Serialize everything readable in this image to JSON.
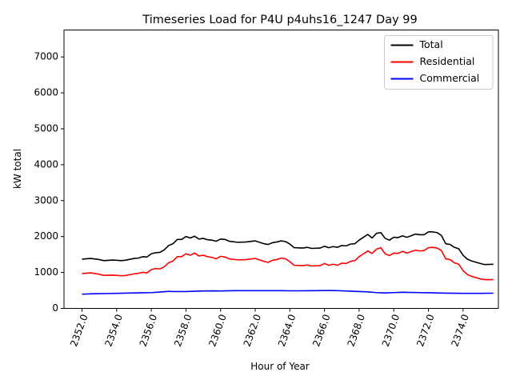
{
  "chart_data": {
    "type": "line",
    "title": "Timeseries Load for P4U p4uhs16_1247  Day 99",
    "xlabel": "Hour of Year",
    "ylabel": "kW total",
    "xlim": [
      2350.96,
      2376.04
    ],
    "ylim": [
      0,
      7750
    ],
    "xticks": [
      2352,
      2354,
      2356,
      2358,
      2360,
      2362,
      2364,
      2366,
      2368,
      2370,
      2372,
      2374
    ],
    "xtick_labels": [
      "2352.0",
      "2354.0",
      "2356.0",
      "2358.0",
      "2360.0",
      "2362.0",
      "2364.0",
      "2366.0",
      "2368.0",
      "2370.0",
      "2372.0",
      "2374.0"
    ],
    "yticks": [
      0,
      1000,
      2000,
      3000,
      4000,
      5000,
      6000,
      7000
    ],
    "ytick_labels": [
      "0",
      "1000",
      "2000",
      "3000",
      "4000",
      "5000",
      "6000",
      "7000"
    ],
    "grid": false,
    "legend_position": "top-right",
    "series": [
      {
        "name": "Total",
        "color": "#000000",
        "points": [
          [
            2352.0,
            1370
          ],
          [
            2352.5,
            1390
          ],
          [
            2353.0,
            1360
          ],
          [
            2353.25,
            1330
          ],
          [
            2353.75,
            1345
          ],
          [
            2354.0,
            1340
          ],
          [
            2354.25,
            1330
          ],
          [
            2354.5,
            1340
          ],
          [
            2355.0,
            1390
          ],
          [
            2355.25,
            1400
          ],
          [
            2355.5,
            1440
          ],
          [
            2355.75,
            1430
          ],
          [
            2356.0,
            1520
          ],
          [
            2356.25,
            1550
          ],
          [
            2356.5,
            1560
          ],
          [
            2356.75,
            1630
          ],
          [
            2357.0,
            1750
          ],
          [
            2357.25,
            1800
          ],
          [
            2357.5,
            1920
          ],
          [
            2357.75,
            1920
          ],
          [
            2358.0,
            2000
          ],
          [
            2358.25,
            1960
          ],
          [
            2358.5,
            2010
          ],
          [
            2358.75,
            1930
          ],
          [
            2359.0,
            1950
          ],
          [
            2359.25,
            1910
          ],
          [
            2359.5,
            1900
          ],
          [
            2359.75,
            1870
          ],
          [
            2360.0,
            1930
          ],
          [
            2360.25,
            1920
          ],
          [
            2360.5,
            1870
          ],
          [
            2361.0,
            1840
          ],
          [
            2361.5,
            1850
          ],
          [
            2362.0,
            1880
          ],
          [
            2362.25,
            1840
          ],
          [
            2362.5,
            1800
          ],
          [
            2362.75,
            1780
          ],
          [
            2363.0,
            1830
          ],
          [
            2363.25,
            1850
          ],
          [
            2363.5,
            1880
          ],
          [
            2363.75,
            1860
          ],
          [
            2364.0,
            1790
          ],
          [
            2364.25,
            1690
          ],
          [
            2364.75,
            1680
          ],
          [
            2365.0,
            1700
          ],
          [
            2365.25,
            1670
          ],
          [
            2365.75,
            1680
          ],
          [
            2366.0,
            1730
          ],
          [
            2366.25,
            1690
          ],
          [
            2366.5,
            1720
          ],
          [
            2366.75,
            1700
          ],
          [
            2367.0,
            1750
          ],
          [
            2367.25,
            1740
          ],
          [
            2367.5,
            1790
          ],
          [
            2367.75,
            1800
          ],
          [
            2368.0,
            1900
          ],
          [
            2368.25,
            1980
          ],
          [
            2368.5,
            2060
          ],
          [
            2368.75,
            1960
          ],
          [
            2369.0,
            2090
          ],
          [
            2369.25,
            2110
          ],
          [
            2369.5,
            1950
          ],
          [
            2369.75,
            1900
          ],
          [
            2370.0,
            1980
          ],
          [
            2370.25,
            1970
          ],
          [
            2370.5,
            2020
          ],
          [
            2370.75,
            1980
          ],
          [
            2371.0,
            2020
          ],
          [
            2371.25,
            2070
          ],
          [
            2371.5,
            2050
          ],
          [
            2371.75,
            2050
          ],
          [
            2372.0,
            2130
          ],
          [
            2372.25,
            2130
          ],
          [
            2372.5,
            2110
          ],
          [
            2372.75,
            2030
          ],
          [
            2373.0,
            1800
          ],
          [
            2373.25,
            1780
          ],
          [
            2373.5,
            1700
          ],
          [
            2373.75,
            1660
          ],
          [
            2374.0,
            1480
          ],
          [
            2374.25,
            1370
          ],
          [
            2374.5,
            1320
          ],
          [
            2375.0,
            1250
          ],
          [
            2375.25,
            1220
          ],
          [
            2375.75,
            1230
          ]
        ]
      },
      {
        "name": "Residential",
        "color": "#ff0000",
        "points": [
          [
            2352.0,
            970
          ],
          [
            2352.5,
            990
          ],
          [
            2353.0,
            950
          ],
          [
            2353.25,
            920
          ],
          [
            2353.75,
            925
          ],
          [
            2354.0,
            920
          ],
          [
            2354.25,
            910
          ],
          [
            2354.5,
            915
          ],
          [
            2355.0,
            960
          ],
          [
            2355.25,
            975
          ],
          [
            2355.5,
            1005
          ],
          [
            2355.75,
            990
          ],
          [
            2356.0,
            1080
          ],
          [
            2356.25,
            1110
          ],
          [
            2356.5,
            1100
          ],
          [
            2356.75,
            1160
          ],
          [
            2357.0,
            1270
          ],
          [
            2357.25,
            1320
          ],
          [
            2357.5,
            1440
          ],
          [
            2357.75,
            1440
          ],
          [
            2358.0,
            1520
          ],
          [
            2358.25,
            1480
          ],
          [
            2358.5,
            1540
          ],
          [
            2358.75,
            1460
          ],
          [
            2359.0,
            1480
          ],
          [
            2359.25,
            1440
          ],
          [
            2359.5,
            1420
          ],
          [
            2359.75,
            1380
          ],
          [
            2360.0,
            1450
          ],
          [
            2360.25,
            1430
          ],
          [
            2360.5,
            1380
          ],
          [
            2361.0,
            1350
          ],
          [
            2361.5,
            1360
          ],
          [
            2362.0,
            1390
          ],
          [
            2362.25,
            1350
          ],
          [
            2362.5,
            1310
          ],
          [
            2362.75,
            1280
          ],
          [
            2363.0,
            1340
          ],
          [
            2363.25,
            1360
          ],
          [
            2363.5,
            1400
          ],
          [
            2363.75,
            1380
          ],
          [
            2364.0,
            1300
          ],
          [
            2364.25,
            1200
          ],
          [
            2364.75,
            1190
          ],
          [
            2365.0,
            1210
          ],
          [
            2365.25,
            1180
          ],
          [
            2365.75,
            1190
          ],
          [
            2366.0,
            1250
          ],
          [
            2366.25,
            1200
          ],
          [
            2366.5,
            1230
          ],
          [
            2366.75,
            1200
          ],
          [
            2367.0,
            1260
          ],
          [
            2367.25,
            1250
          ],
          [
            2367.5,
            1310
          ],
          [
            2367.75,
            1330
          ],
          [
            2368.0,
            1440
          ],
          [
            2368.25,
            1520
          ],
          [
            2368.5,
            1600
          ],
          [
            2368.75,
            1530
          ],
          [
            2369.0,
            1650
          ],
          [
            2369.25,
            1690
          ],
          [
            2369.5,
            1520
          ],
          [
            2369.75,
            1470
          ],
          [
            2370.0,
            1540
          ],
          [
            2370.25,
            1530
          ],
          [
            2370.5,
            1590
          ],
          [
            2370.75,
            1540
          ],
          [
            2371.0,
            1580
          ],
          [
            2371.25,
            1620
          ],
          [
            2371.5,
            1600
          ],
          [
            2371.75,
            1610
          ],
          [
            2372.0,
            1690
          ],
          [
            2372.25,
            1700
          ],
          [
            2372.5,
            1680
          ],
          [
            2372.75,
            1610
          ],
          [
            2373.0,
            1380
          ],
          [
            2373.25,
            1360
          ],
          [
            2373.5,
            1270
          ],
          [
            2373.75,
            1230
          ],
          [
            2374.0,
            1050
          ],
          [
            2374.25,
            940
          ],
          [
            2374.5,
            890
          ],
          [
            2375.0,
            820
          ],
          [
            2375.25,
            800
          ],
          [
            2375.75,
            800
          ]
        ]
      },
      {
        "name": "Commercial",
        "color": "#0000ff",
        "points": [
          [
            2352.0,
            395
          ],
          [
            2352.5,
            405
          ],
          [
            2353.0,
            410
          ],
          [
            2353.5,
            415
          ],
          [
            2354.0,
            420
          ],
          [
            2354.5,
            425
          ],
          [
            2355.0,
            430
          ],
          [
            2355.5,
            435
          ],
          [
            2356.0,
            440
          ],
          [
            2356.5,
            455
          ],
          [
            2357.0,
            475
          ],
          [
            2357.25,
            470
          ],
          [
            2357.75,
            470
          ],
          [
            2358.0,
            470
          ],
          [
            2358.5,
            478
          ],
          [
            2359.0,
            485
          ],
          [
            2359.5,
            488
          ],
          [
            2360.0,
            485
          ],
          [
            2360.5,
            492
          ],
          [
            2361.0,
            495
          ],
          [
            2361.5,
            495
          ],
          [
            2362.0,
            495
          ],
          [
            2362.5,
            495
          ],
          [
            2363.0,
            495
          ],
          [
            2363.5,
            493
          ],
          [
            2364.0,
            490
          ],
          [
            2364.5,
            490
          ],
          [
            2365.0,
            492
          ],
          [
            2365.5,
            495
          ],
          [
            2366.0,
            498
          ],
          [
            2366.5,
            498
          ],
          [
            2367.0,
            490
          ],
          [
            2367.5,
            480
          ],
          [
            2368.0,
            470
          ],
          [
            2368.5,
            460
          ],
          [
            2369.0,
            440
          ],
          [
            2369.5,
            430
          ],
          [
            2370.0,
            440
          ],
          [
            2370.5,
            450
          ],
          [
            2371.0,
            445
          ],
          [
            2371.5,
            440
          ],
          [
            2372.0,
            435
          ],
          [
            2372.5,
            430
          ],
          [
            2373.0,
            425
          ],
          [
            2373.5,
            422
          ],
          [
            2374.0,
            420
          ],
          [
            2374.5,
            420
          ],
          [
            2375.0,
            420
          ],
          [
            2375.75,
            423
          ]
        ]
      }
    ]
  }
}
